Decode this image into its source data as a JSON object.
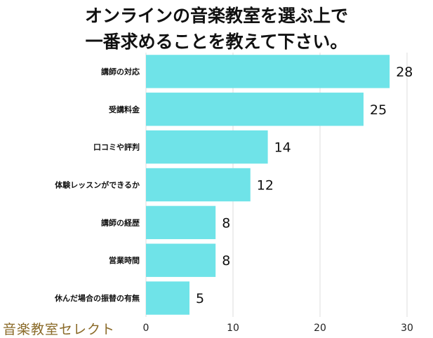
{
  "chart_data": {
    "type": "bar",
    "orientation": "horizontal",
    "title": "オンラインの音楽教室を選ぶ上で一番求めることを教えて下さい。",
    "title_lines": [
      "オンラインの音楽教室を選ぶ上で",
      "一番求めることを教えて下さい。"
    ],
    "categories": [
      "講師の対応",
      "受講料金",
      "口コミや評判",
      "体験レッスンができるか",
      "講師の経歴",
      "営業時間",
      "休んだ場合の振替の有無"
    ],
    "values": [
      28,
      25,
      14,
      12,
      8,
      8,
      5
    ],
    "xlim": [
      0,
      30
    ],
    "xticks": [
      0,
      10,
      20,
      30
    ],
    "grid": true,
    "bar_color": "#6fe3e8"
  },
  "watermark": "音楽教室セレクト"
}
